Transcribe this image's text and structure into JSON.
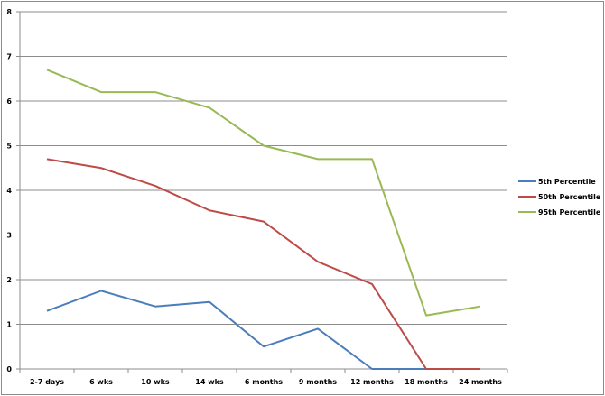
{
  "chart_data": {
    "type": "line",
    "title": "",
    "xlabel": "",
    "ylabel": "",
    "categories": [
      "2-7 days",
      "6 wks",
      "10 wks",
      "14 wks",
      "6 months",
      "9 months",
      "12 months",
      "18 months",
      "24 months"
    ],
    "ylim": [
      0,
      8
    ],
    "yticks": [
      "0",
      "1",
      "2",
      "3",
      "4",
      "5",
      "6",
      "7",
      "8"
    ],
    "grid": true,
    "legend_position": "right",
    "series": [
      {
        "name": "5th Percentile",
        "color": "#4a7ebb",
        "values": [
          1.3,
          1.75,
          1.4,
          1.5,
          0.5,
          0.9,
          0,
          0,
          0
        ]
      },
      {
        "name": "50th Percentile",
        "color": "#be4b48",
        "values": [
          4.7,
          4.5,
          4.1,
          3.55,
          3.3,
          2.4,
          1.9,
          0,
          0
        ]
      },
      {
        "name": "95th Percentile",
        "color": "#98b954",
        "values": [
          6.7,
          6.2,
          6.2,
          5.85,
          5.0,
          4.7,
          4.7,
          1.2,
          1.4
        ]
      }
    ]
  }
}
